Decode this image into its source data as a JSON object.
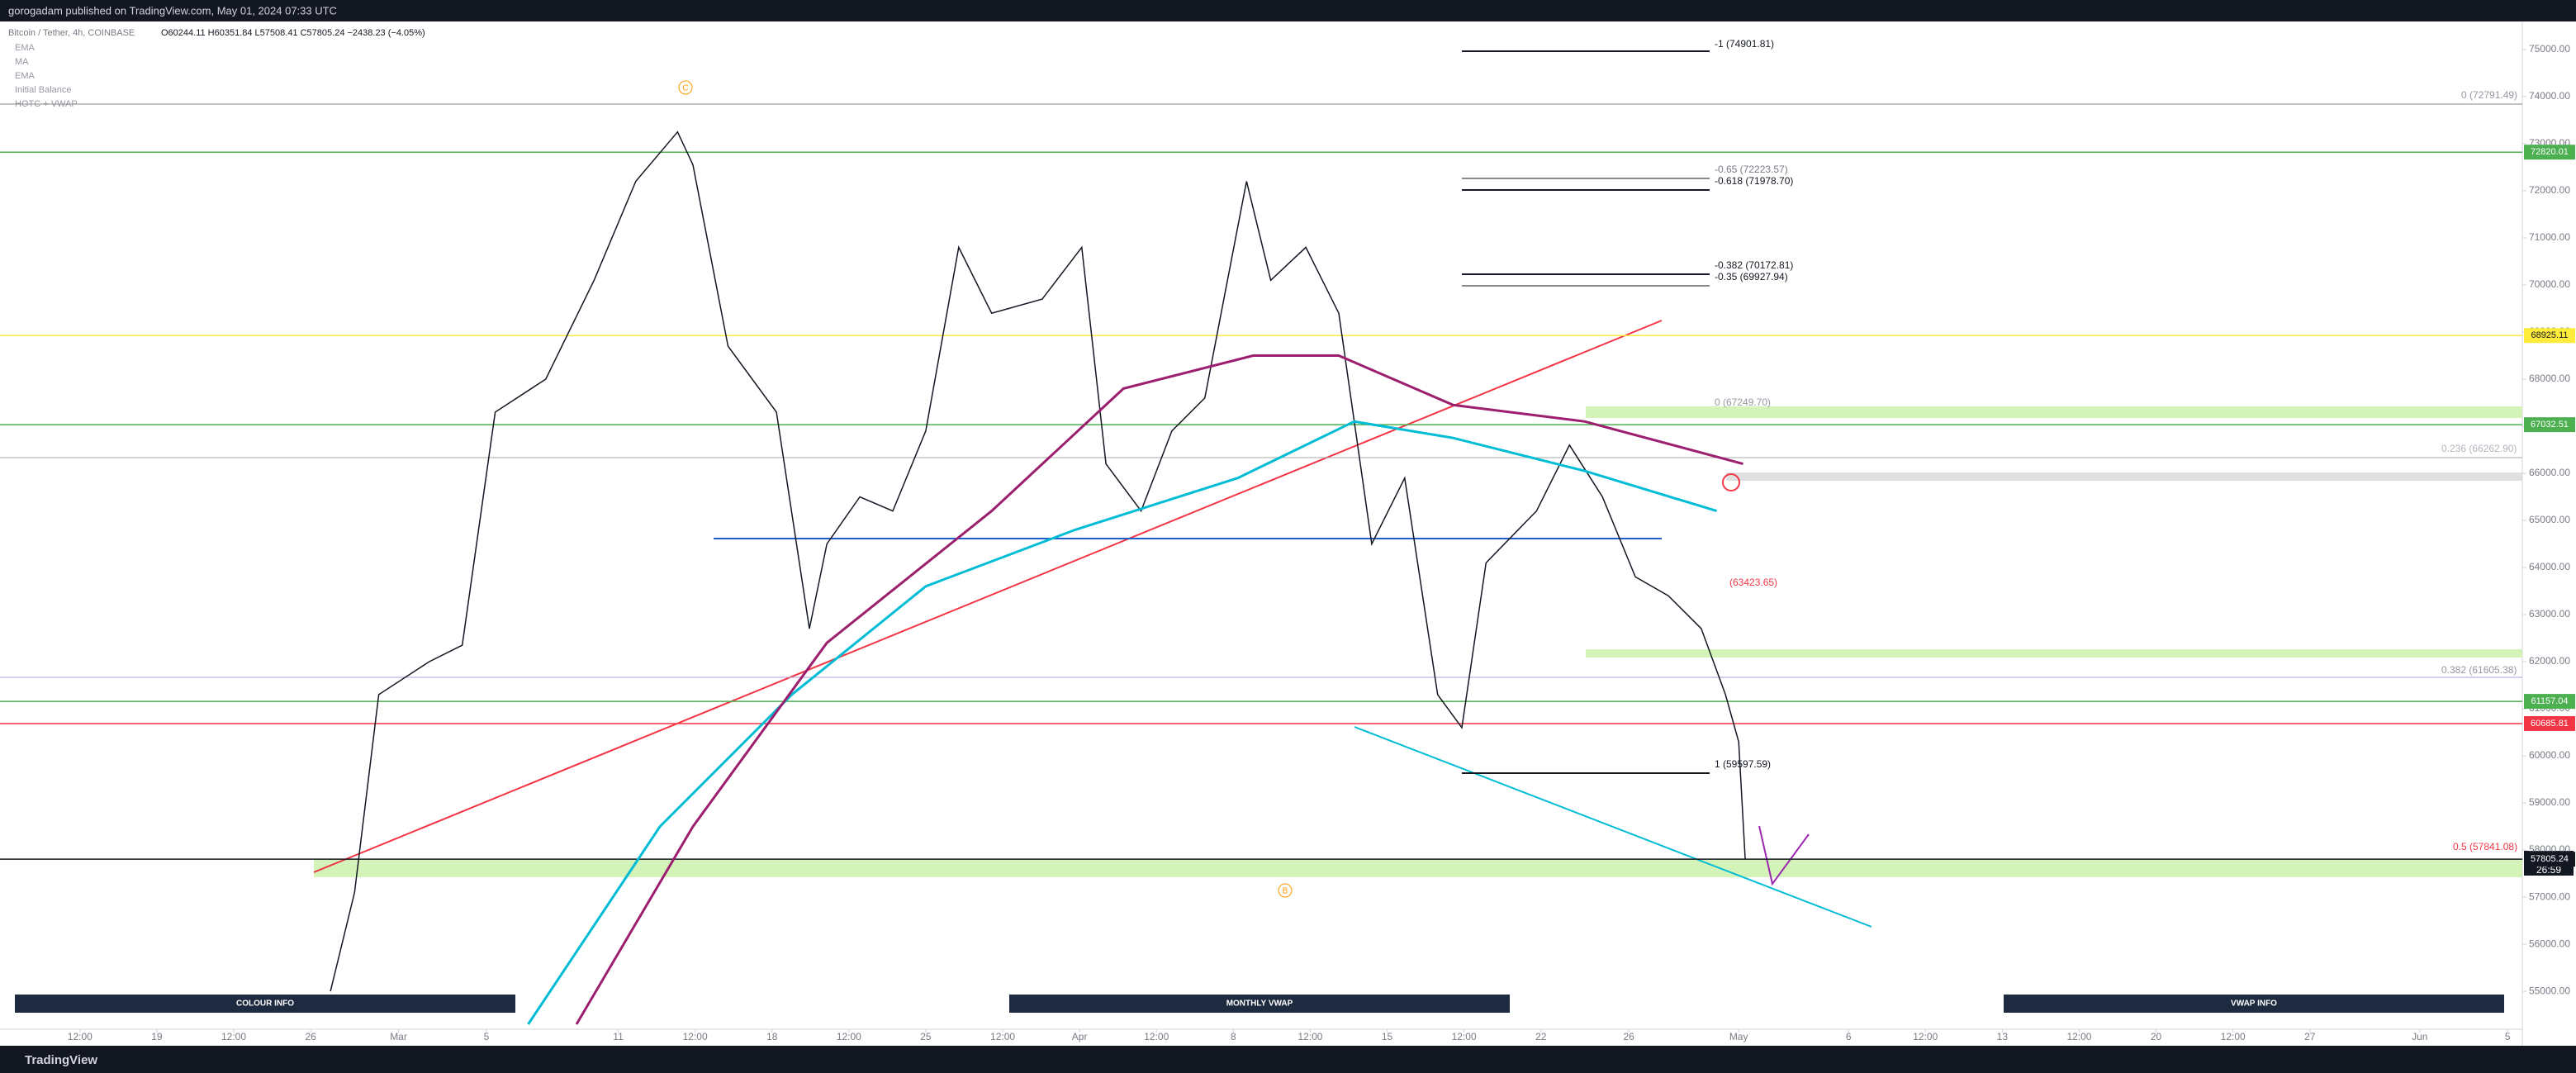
{
  "chart_data": {
    "type": "line",
    "publisher": "gorogadam published on TradingView.com, May 01, 2024 07:33 UTC",
    "title": "Bitcoin / Tether, 4h, COINBASE",
    "symbol_values": "O60244.11 H60351.84 L57508.41 C57805.24 −2438.23 (−4.05%)",
    "indicators": [
      "EMA",
      "MA",
      "EMA",
      "Initial Balance",
      "HOTC + VWAP"
    ],
    "xlim": [
      42.86,
      157.67
    ],
    "ylim": [
      54230,
      75560
    ],
    "xticks": [
      {
        "value": 46.5,
        "label": "12:00"
      },
      {
        "value": 50,
        "label": "19"
      },
      {
        "value": 53.5,
        "label": "12:00"
      },
      {
        "value": 57,
        "label": "26"
      },
      {
        "value": 61,
        "label": "Mar"
      },
      {
        "value": 65,
        "label": "5"
      },
      {
        "value": 71,
        "label": "11"
      },
      {
        "value": 74.5,
        "label": "12:00"
      },
      {
        "value": 78,
        "label": "18"
      },
      {
        "value": 81.5,
        "label": "12:00"
      },
      {
        "value": 85,
        "label": "25"
      },
      {
        "value": 88.5,
        "label": "12:00"
      },
      {
        "value": 92,
        "label": "Apr"
      },
      {
        "value": 95.5,
        "label": "12:00"
      },
      {
        "value": 99,
        "label": "8"
      },
      {
        "value": 102.5,
        "label": "12:00"
      },
      {
        "value": 106,
        "label": "15"
      },
      {
        "value": 109.5,
        "label": "12:00"
      },
      {
        "value": 113,
        "label": "22"
      },
      {
        "value": 117,
        "label": "26"
      },
      {
        "value": 122,
        "label": "May"
      },
      {
        "value": 127,
        "label": "6"
      },
      {
        "value": 130.5,
        "label": "12:00"
      },
      {
        "value": 134,
        "label": "13"
      },
      {
        "value": 137.5,
        "label": "12:00"
      },
      {
        "value": 141,
        "label": "20"
      },
      {
        "value": 144.5,
        "label": "12:00"
      },
      {
        "value": 148,
        "label": "27"
      },
      {
        "value": 153,
        "label": "Jun"
      },
      {
        "value": 157,
        "label": "5"
      }
    ],
    "yticks": [
      {
        "value": 55000,
        "label": "55000.00"
      },
      {
        "value": 56000,
        "label": "56000.00"
      },
      {
        "value": 57000,
        "label": "57000.00"
      },
      {
        "value": 58000,
        "label": "58000.00"
      },
      {
        "value": 59000,
        "label": "59000.00"
      },
      {
        "value": 60000,
        "label": "60000.00"
      },
      {
        "value": 61000,
        "label": "61000.00"
      },
      {
        "value": 62000,
        "label": "62000.00"
      },
      {
        "value": 63000,
        "label": "63000.00"
      },
      {
        "value": 64000,
        "label": "64000.00"
      },
      {
        "value": 65000,
        "label": "65000.00"
      },
      {
        "value": 66000,
        "label": "66000.00"
      },
      {
        "value": 67000,
        "label": "67000.00"
      },
      {
        "value": 68000,
        "label": "68000.00"
      },
      {
        "value": 69000,
        "label": "69000.00"
      },
      {
        "value": 70000,
        "label": "70000.00"
      },
      {
        "value": 71000,
        "label": "71000.00"
      },
      {
        "value": 72000,
        "label": "72000.00"
      },
      {
        "value": 73000,
        "label": "73000.00"
      },
      {
        "value": 74000,
        "label": "74000.00"
      },
      {
        "value": 75000,
        "label": "75000.00"
      }
    ],
    "series": [
      {
        "color": "#131722",
        "x": [
          57.9,
          59,
          60.1,
          62.4,
          63.9,
          65.4,
          67.7,
          69.9,
          71.8,
          73.7,
          74.4,
          76,
          78.2,
          79.7,
          80.5,
          82,
          83.5,
          85,
          86.5,
          88,
          90.3,
          92.1,
          93.2,
          94.8,
          96.2,
          97.7,
          99.6,
          100.7,
          102.3,
          103.8,
          105.3,
          106.8,
          108.3,
          109.4,
          110.5,
          112.8,
          114.3,
          115.8,
          117.3,
          118.8,
          120.3,
          121.4,
          122,
          122.3
        ],
        "values": [
          55000,
          57100,
          61300,
          62000,
          62350,
          67300,
          68000,
          70100,
          72200,
          73250,
          72550,
          68700,
          67300,
          62700,
          64500,
          65500,
          65200,
          66900,
          70800,
          69400,
          69700,
          70800,
          66200,
          65200,
          66900,
          67600,
          72200,
          70100,
          70800,
          69400,
          64500,
          65900,
          61300,
          60600,
          64100,
          65200,
          66600,
          65500,
          63800,
          63400,
          62700,
          61300,
          60300,
          57800
        ]
      },
      {
        "color": "#00bcd4",
        "x": [
          66.9,
          72.9,
          78.9,
          85,
          91.8,
          99.2,
          104.5,
          109,
          115,
          121
        ],
        "values": [
          54300,
          58500,
          61300,
          63600,
          64800,
          65900,
          67100,
          66750,
          66050,
          65200
        ]
      },
      {
        "color": "#9c1e6e",
        "x": [
          69.1,
          74.4,
          80.5,
          88,
          94,
          99.9,
          103.8,
          109,
          115,
          122.2
        ],
        "values": [
          54300,
          58500,
          62400,
          65200,
          67800,
          68500,
          68500,
          67450,
          67100,
          66200
        ]
      }
    ],
    "price_labels": [
      {
        "value": 72820.01,
        "color": "#4caf50"
      },
      {
        "value": 68925.11,
        "color": "#ffeb3b"
      },
      {
        "value": 67032.51,
        "color": "#4caf50"
      },
      {
        "value": 61157.04,
        "color": "#4caf50"
      },
      {
        "value": 60685.81,
        "color": "#f23645"
      },
      {
        "value": 57805.24,
        "color": "#131722"
      }
    ],
    "countdown": "26:59",
    "fib_labels": [
      "-1 (74901.81)",
      "-0.65 (72223.57)",
      "-0.618 (71978.70)",
      "-0.382 (70172.81)",
      "-0.35 (69927.94)",
      "0 (67249.70)",
      "1 (59597.59)",
      "0 (72791.49)",
      "0.236 (66262.90)",
      "0.382 (61605.38)",
      "0.5 (57841.08)",
      "(63423.65)"
    ],
    "markers": [
      "C",
      "B"
    ],
    "info_boxes": [
      "COLOUR INFO",
      "MONTHLY VWAP",
      "VWAP INFO"
    ],
    "footer": "TradingView"
  }
}
